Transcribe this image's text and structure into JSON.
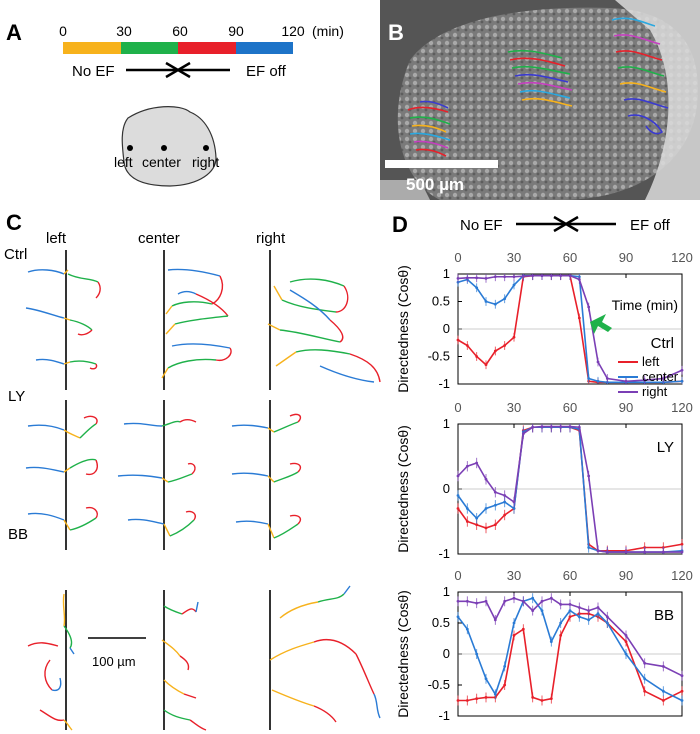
{
  "panel_a": {
    "letter": "A",
    "ticks": [
      "0",
      "30",
      "60",
      "90",
      "120"
    ],
    "unit": "(min)",
    "left_label": "No  EF",
    "right_label": "EF off",
    "segment_colors": [
      "#f7b21c",
      "#1fb14a",
      "#e8202a",
      "#1d73c8"
    ],
    "positions": [
      "left",
      "center",
      "right"
    ]
  },
  "panel_b": {
    "letter": "B",
    "scale_label": "500 µm"
  },
  "panel_c": {
    "letter": "C",
    "columns": [
      "left",
      "center",
      "right"
    ],
    "rows": [
      "Ctrl",
      "LY",
      "BB"
    ],
    "scale_label": "100 µm"
  },
  "panel_d": {
    "letter": "D",
    "header_left": "No  EF",
    "header_right": "EF off",
    "ylabel": "Directedness (Cosθ)",
    "xlabel": "Time (min)",
    "legend": [
      "left",
      "center",
      "right"
    ],
    "series_colors": {
      "left": "#e8202a",
      "center": "#2a7bd5",
      "right": "#7b3fb5"
    },
    "arrow_color": "#1fb14a"
  },
  "chart_data": [
    {
      "type": "line",
      "title": "",
      "label": "Ctrl",
      "xlabel": "Time (min)",
      "ylabel": "Directedness (Cosθ)",
      "xlim": [
        0,
        120
      ],
      "ylim": [
        -1,
        1
      ],
      "xticks": [
        0,
        30,
        60,
        90,
        120
      ],
      "yticks": [
        1,
        0.5,
        0,
        -0.5,
        -1
      ],
      "x": [
        0,
        5,
        10,
        15,
        20,
        25,
        30,
        35,
        40,
        45,
        50,
        55,
        60,
        65,
        70,
        75,
        80,
        90,
        100,
        110,
        120
      ],
      "series": [
        {
          "name": "left",
          "values": [
            -0.2,
            -0.3,
            -0.5,
            -0.65,
            -0.4,
            -0.3,
            -0.15,
            0.95,
            0.97,
            0.97,
            0.97,
            0.97,
            0.97,
            0.2,
            -0.95,
            -0.97,
            -0.97,
            -0.97,
            -0.97,
            -0.97,
            -0.95
          ]
        },
        {
          "name": "center",
          "values": [
            0.85,
            0.9,
            0.75,
            0.5,
            0.45,
            0.55,
            0.8,
            0.97,
            0.97,
            0.97,
            0.97,
            0.97,
            0.97,
            0.95,
            -0.9,
            -0.95,
            -0.97,
            -0.97,
            -0.97,
            -0.97,
            -0.95
          ]
        },
        {
          "name": "right",
          "values": [
            0.92,
            0.93,
            0.93,
            0.92,
            0.95,
            0.95,
            0.95,
            0.96,
            0.97,
            0.97,
            0.97,
            0.97,
            0.97,
            0.9,
            0.4,
            -0.6,
            -0.9,
            -0.95,
            -0.93,
            -0.9,
            -0.75
          ]
        }
      ]
    },
    {
      "type": "line",
      "title": "",
      "label": "LY",
      "xlabel": "",
      "ylabel": "Directedness (Cosθ)",
      "xlim": [
        0,
        120
      ],
      "ylim": [
        -1,
        1
      ],
      "xticks": [
        0,
        30,
        60,
        90,
        120
      ],
      "yticks": [
        1,
        0,
        -1
      ],
      "x": [
        0,
        5,
        10,
        15,
        20,
        25,
        30,
        35,
        40,
        45,
        50,
        55,
        60,
        65,
        70,
        75,
        80,
        90,
        100,
        110,
        120
      ],
      "series": [
        {
          "name": "left",
          "values": [
            -0.3,
            -0.5,
            -0.55,
            -0.6,
            -0.55,
            -0.4,
            -0.3,
            0.9,
            0.95,
            0.95,
            0.95,
            0.95,
            0.95,
            0.9,
            -0.85,
            -0.95,
            -0.95,
            -0.95,
            -0.9,
            -0.9,
            -0.85
          ]
        },
        {
          "name": "center",
          "values": [
            -0.1,
            -0.3,
            -0.45,
            -0.3,
            -0.25,
            -0.2,
            -0.3,
            0.88,
            0.95,
            0.95,
            0.95,
            0.95,
            0.95,
            0.92,
            -0.9,
            -0.95,
            -0.97,
            -0.97,
            -0.97,
            -0.97,
            -0.95
          ]
        },
        {
          "name": "right",
          "values": [
            0.2,
            0.35,
            0.4,
            0.15,
            -0.05,
            -0.1,
            -0.2,
            0.85,
            0.95,
            0.96,
            0.96,
            0.96,
            0.96,
            0.95,
            0.2,
            -0.95,
            -0.97,
            -0.97,
            -0.97,
            -0.97,
            -0.97
          ]
        }
      ]
    },
    {
      "type": "line",
      "title": "",
      "label": "BB",
      "xlabel": "",
      "ylabel": "Directedness (Cosθ)",
      "xlim": [
        0,
        120
      ],
      "ylim": [
        -1,
        1
      ],
      "xticks": [
        0,
        30,
        60,
        90,
        120
      ],
      "yticks": [
        1,
        0.5,
        0,
        -0.5,
        -1
      ],
      "x": [
        0,
        5,
        10,
        15,
        20,
        25,
        30,
        35,
        40,
        45,
        50,
        55,
        60,
        65,
        70,
        75,
        80,
        90,
        100,
        110,
        120
      ],
      "series": [
        {
          "name": "left",
          "values": [
            -0.75,
            -0.75,
            -0.72,
            -0.7,
            -0.7,
            -0.5,
            0.3,
            0.4,
            -0.7,
            -0.75,
            -0.72,
            0.3,
            0.6,
            0.65,
            0.65,
            0.6,
            0.5,
            0.2,
            -0.6,
            -0.75,
            -0.6
          ]
        },
        {
          "name": "center",
          "values": [
            0.6,
            0.4,
            0.0,
            -0.4,
            -0.65,
            -0.2,
            0.5,
            0.85,
            0.9,
            0.7,
            0.2,
            0.5,
            0.7,
            0.6,
            0.55,
            0.65,
            0.5,
            0.0,
            -0.4,
            -0.6,
            -0.75
          ]
        },
        {
          "name": "right",
          "values": [
            0.85,
            0.85,
            0.82,
            0.85,
            0.55,
            0.85,
            0.9,
            0.85,
            0.7,
            0.85,
            0.9,
            0.8,
            0.8,
            0.75,
            0.7,
            0.75,
            0.6,
            0.3,
            -0.15,
            -0.2,
            -0.35
          ]
        }
      ]
    }
  ]
}
